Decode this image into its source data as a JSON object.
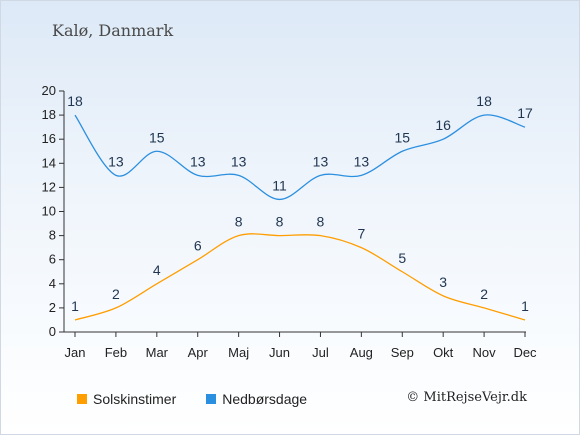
{
  "header": {
    "title": "Kalø, Danmark"
  },
  "chart_data": {
    "type": "line",
    "categories": [
      "Jan",
      "Feb",
      "Mar",
      "Apr",
      "Maj",
      "Jun",
      "Jul",
      "Aug",
      "Sep",
      "Okt",
      "Nov",
      "Dec"
    ],
    "series": [
      {
        "name": "Solskinstimer",
        "color": "#ff9e00",
        "values": [
          1,
          2,
          4,
          6,
          8,
          8,
          8,
          7,
          5,
          3,
          2,
          1
        ]
      },
      {
        "name": "Nedbørsdage",
        "color": "#2b8fe0",
        "values": [
          18,
          13,
          15,
          13,
          13,
          11,
          13,
          13,
          15,
          16,
          18,
          17
        ]
      }
    ],
    "ylim": [
      0,
      20
    ],
    "yticks": [
      0,
      2,
      4,
      6,
      8,
      10,
      12,
      14,
      16,
      18,
      20
    ],
    "grid": false,
    "legend_position": "bottom-left",
    "line_style": "smooth"
  },
  "legend": {
    "items": [
      {
        "label": "Solskinstimer",
        "color": "#ff9e00"
      },
      {
        "label": "Nedbørsdage",
        "color": "#2b8fe0"
      }
    ]
  },
  "footer": {
    "copyright": "© MitRejseVejr.dk"
  }
}
